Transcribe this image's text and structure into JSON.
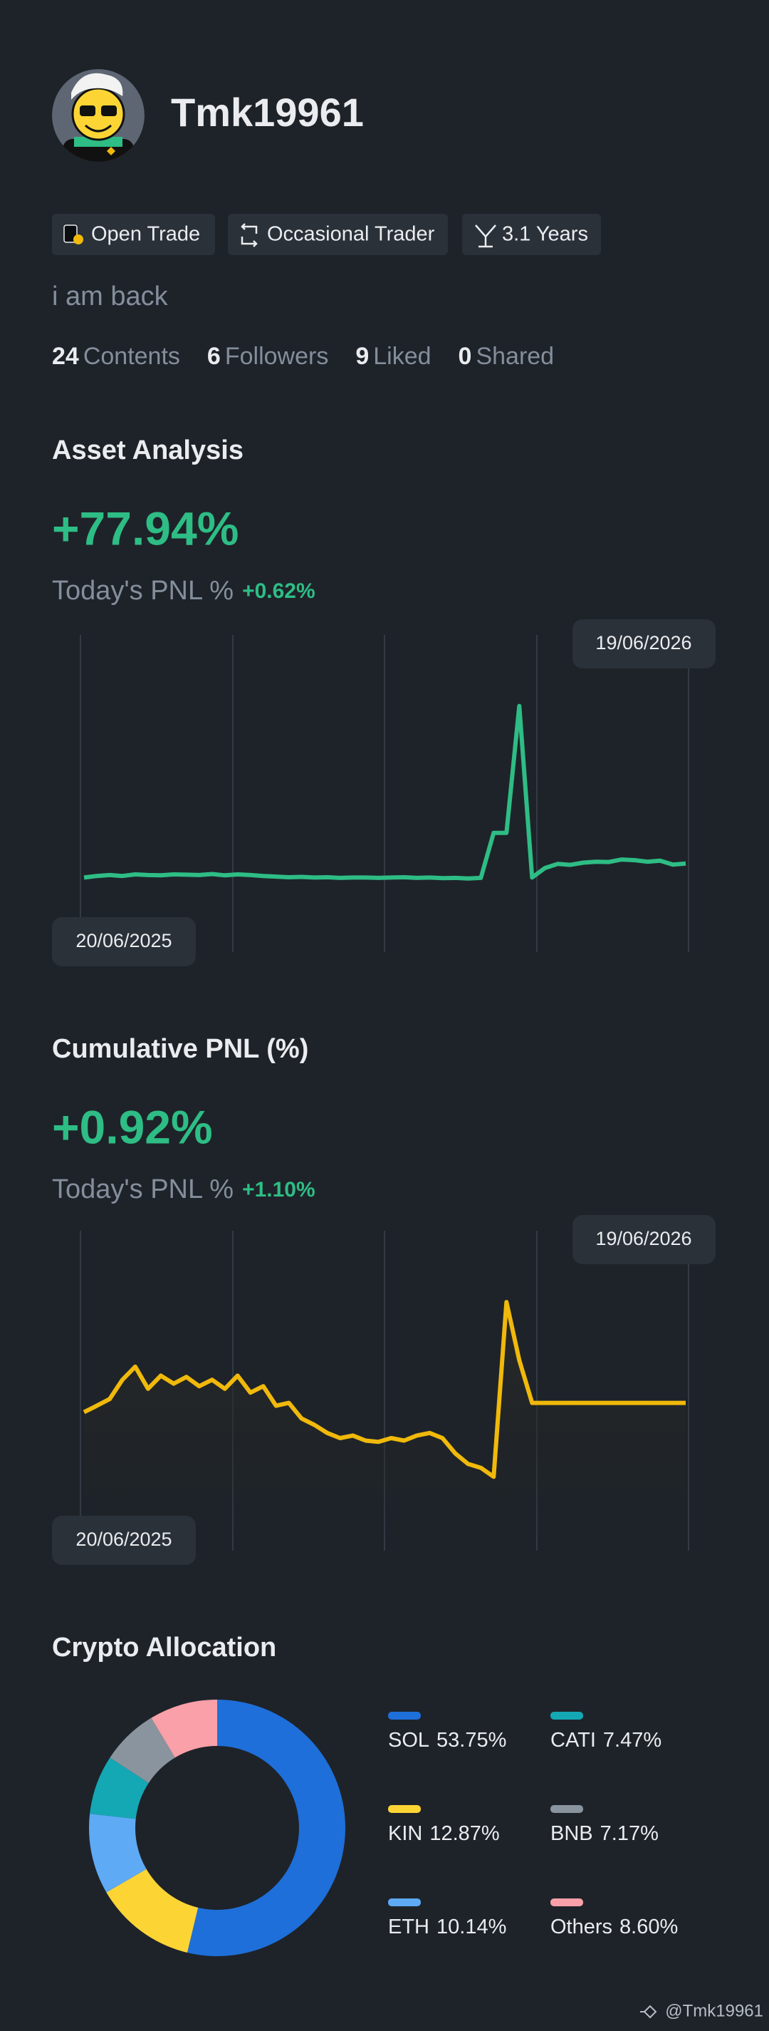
{
  "profile": {
    "name": "Tmk19961",
    "tags": [
      "Open Trade",
      "Occasional Trader",
      "3.1 Years"
    ],
    "bio": "i am back",
    "stats": [
      {
        "count": 24,
        "label": "Contents"
      },
      {
        "count": 6,
        "label": "Followers"
      },
      {
        "count": 9,
        "label": "Liked"
      },
      {
        "count": 0,
        "label": "Shared"
      }
    ]
  },
  "chart_data": [
    {
      "type": "line",
      "title": "Asset Analysis",
      "headline": "+77.94%",
      "subtitle": "Today's PNL %",
      "today_change": "+0.62%",
      "date_labels": [
        "20/06/2025",
        "19/06/2026"
      ],
      "color": "#2ebd85",
      "ylim": [
        0,
        100
      ],
      "values": [
        23.5,
        24,
        24.3,
        24,
        24.5,
        24.3,
        24.2,
        24.5,
        24.4,
        24.3,
        24.6,
        24.2,
        24.5,
        24.3,
        24,
        23.8,
        23.6,
        23.7,
        23.5,
        23.6,
        23.4,
        23.5,
        23.5,
        23.4,
        23.5,
        23.6,
        23.4,
        23.5,
        23.3,
        23.4,
        23.2,
        23.4,
        37.6,
        37.6,
        77.6,
        23.5,
        26.5,
        27.8,
        27.5,
        28.2,
        28.5,
        28.4,
        29.2,
        29.0,
        28.5,
        28.8,
        27.6,
        27.9
      ]
    },
    {
      "type": "line",
      "title": "Cumulative PNL (%)",
      "headline": "+0.92%",
      "subtitle": "Today's PNL %",
      "today_change": "+1.10%",
      "date_labels": [
        "20/06/2025",
        "19/06/2026"
      ],
      "color": "#f0b90b",
      "ylim": [
        -5,
        5
      ],
      "values": [
        -0.67,
        -0.47,
        -0.26,
        0.34,
        0.75,
        0.06,
        0.47,
        0.22,
        0.43,
        0.14,
        0.34,
        0.06,
        0.47,
        -0.06,
        0.14,
        -0.47,
        -0.38,
        -0.87,
        -1.07,
        -1.32,
        -1.48,
        -1.4,
        -1.56,
        -1.6,
        -1.48,
        -1.56,
        -1.4,
        -1.32,
        -1.48,
        -1.96,
        -2.29,
        -2.41,
        -2.69,
        2.77,
        0.95,
        -0.38,
        -0.38,
        -0.38,
        -0.38,
        -0.38,
        -0.38,
        -0.38,
        -0.38,
        -0.38,
        -0.38,
        -0.38,
        -0.38,
        -0.38
      ]
    },
    {
      "type": "pie",
      "title": "Crypto Allocation",
      "categories": [
        "SOL",
        "KIN",
        "ETH",
        "CATI",
        "BNB",
        "Others"
      ],
      "values": [
        53.75,
        12.87,
        10.14,
        7.47,
        7.17,
        8.6
      ],
      "value_labels": [
        "53.75%",
        "12.87%",
        "10.14%",
        "7.47%",
        "7.17%",
        "8.60%"
      ],
      "colors": [
        "#1e6fd9",
        "#fcd535",
        "#5eaaf5",
        "#14a8b5",
        "#8a949e",
        "#f9a0a8"
      ]
    }
  ],
  "footer": {
    "watermark": "@Tmk19961"
  }
}
